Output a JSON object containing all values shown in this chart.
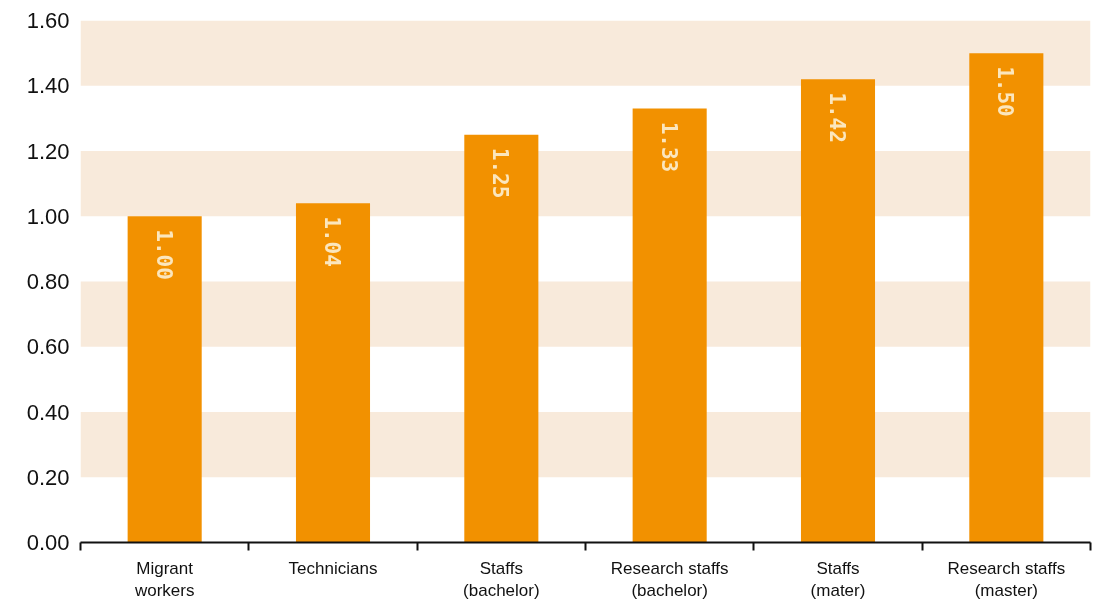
{
  "chart_data": {
    "type": "bar",
    "categories": [
      "Migrant workers",
      "Technicians",
      "Staffs (bachelor)",
      "Research staffs (bachelor)",
      "Staffs (mater)",
      "Research staffs (master)"
    ],
    "values": [
      1.0,
      1.04,
      1.25,
      1.33,
      1.42,
      1.5
    ],
    "color": "#f29100",
    "value_labels": [
      "1.00",
      "1.04",
      "1.25",
      "1.33",
      "1.42",
      "1.50"
    ],
    "ylim": [
      0,
      1.6
    ],
    "yticks": [
      {
        "value": 0,
        "label": "0.00"
      },
      {
        "value": 0.2,
        "label": "0.20"
      },
      {
        "value": 0.4,
        "label": "0.40"
      },
      {
        "value": 0.6,
        "label": "0.60"
      },
      {
        "value": 0.8,
        "label": "0.80"
      },
      {
        "value": 1.0,
        "label": "1.00"
      },
      {
        "value": 1.2,
        "label": "1.20"
      },
      {
        "value": 1.4,
        "label": "1.40"
      },
      {
        "value": 1.6,
        "label": "1.60"
      }
    ],
    "bands": [
      {
        "axis": "y",
        "from": 0.2,
        "to": 0.4,
        "color": "#f8eadb"
      },
      {
        "axis": "y",
        "from": 0.6,
        "to": 0.8,
        "color": "#f8eadb"
      },
      {
        "axis": "y",
        "from": 1.0,
        "to": 1.2,
        "color": "#f8eadb"
      },
      {
        "axis": "y",
        "from": 1.4,
        "to": 1.6,
        "color": "#f8eadb"
      }
    ],
    "grid": false
  }
}
